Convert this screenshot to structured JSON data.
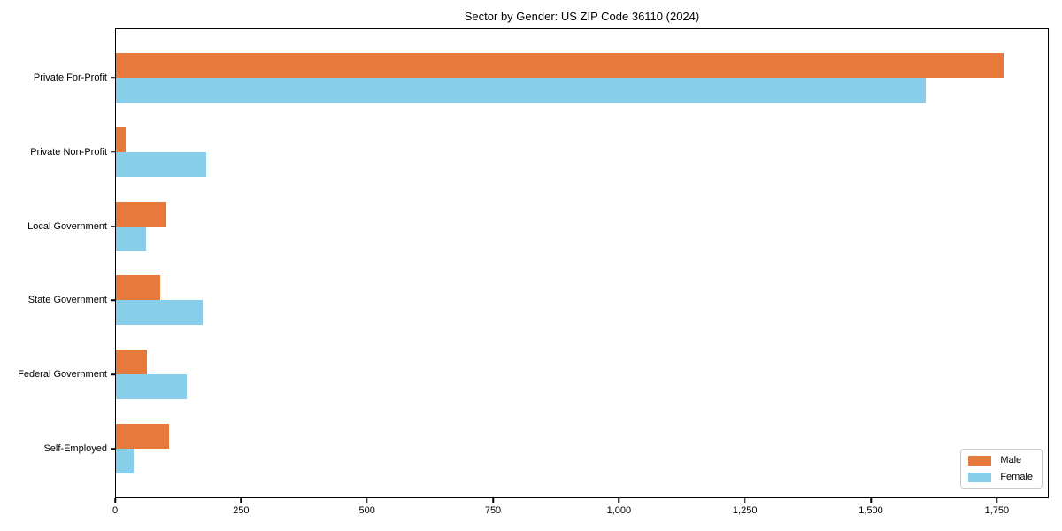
{
  "chart_data": {
    "type": "bar",
    "orientation": "horizontal",
    "title": "Sector by Gender: US ZIP Code 36110 (2024)",
    "categories": [
      "Private For-Profit",
      "Private Non-Profit",
      "Local Government",
      "State Government",
      "Federal Government",
      "Self-Employed"
    ],
    "series": [
      {
        "name": "Male",
        "color": "#E8793D",
        "values": [
          1765,
          20,
          100,
          88,
          61,
          105
        ]
      },
      {
        "name": "Female",
        "color": "#87CEEB",
        "values": [
          1610,
          180,
          60,
          172,
          140,
          35
        ]
      }
    ],
    "xlim": [
      0,
      1853
    ],
    "x_ticks": [
      0,
      250,
      500,
      750,
      1000,
      1250,
      1500,
      1750
    ],
    "x_tick_labels": [
      "0",
      "250",
      "500",
      "750",
      "1,000",
      "1,250",
      "1,500",
      "1,750"
    ],
    "xlabel": "",
    "ylabel": "",
    "grid": false,
    "legend": {
      "position": "lower right",
      "entries": [
        "Male",
        "Female"
      ]
    },
    "colors": {
      "axis": "#000000",
      "background": "#ffffff",
      "legend_border": "#c9c9c9"
    }
  }
}
